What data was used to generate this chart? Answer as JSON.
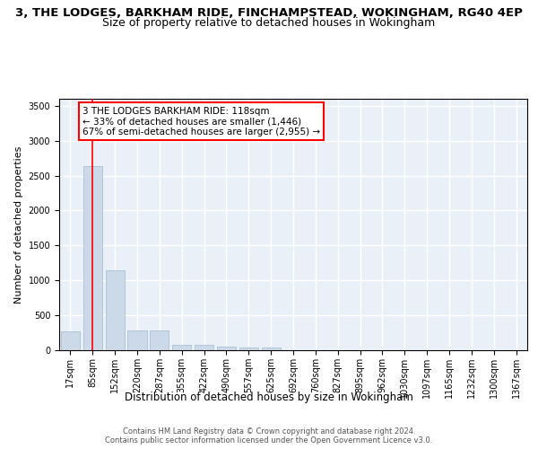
{
  "title1": "3, THE LODGES, BARKHAM RIDE, FINCHAMPSTEAD, WOKINGHAM, RG40 4EP",
  "title2": "Size of property relative to detached houses in Wokingham",
  "xlabel": "Distribution of detached houses by size in Wokingham",
  "ylabel": "Number of detached properties",
  "categories": [
    "17sqm",
    "85sqm",
    "152sqm",
    "220sqm",
    "287sqm",
    "355sqm",
    "422sqm",
    "490sqm",
    "557sqm",
    "625sqm",
    "692sqm",
    "760sqm",
    "827sqm",
    "895sqm",
    "962sqm",
    "1030sqm",
    "1097sqm",
    "1165sqm",
    "1232sqm",
    "1300sqm",
    "1367sqm"
  ],
  "values": [
    270,
    2630,
    1140,
    280,
    280,
    80,
    80,
    55,
    45,
    40,
    0,
    0,
    0,
    0,
    0,
    0,
    0,
    0,
    0,
    0,
    0
  ],
  "bar_color": "#ccd9e8",
  "bar_edge_color": "#a0b8cc",
  "annotation_text": "3 THE LODGES BARKHAM RIDE: 118sqm\n← 33% of detached houses are smaller (1,446)\n67% of semi-detached houses are larger (2,955) →",
  "annotation_box_color": "white",
  "annotation_box_edge": "red",
  "red_line_index": 1,
  "ylim": [
    0,
    3600
  ],
  "yticks": [
    0,
    500,
    1000,
    1500,
    2000,
    2500,
    3000,
    3500
  ],
  "bg_color": "#eaf0f8",
  "grid_color": "#ffffff",
  "footer": "Contains HM Land Registry data © Crown copyright and database right 2024.\nContains public sector information licensed under the Open Government Licence v3.0.",
  "title1_fontsize": 9.5,
  "title2_fontsize": 9,
  "xlabel_fontsize": 8.5,
  "ylabel_fontsize": 8,
  "tick_fontsize": 7,
  "annotation_fontsize": 7.5
}
